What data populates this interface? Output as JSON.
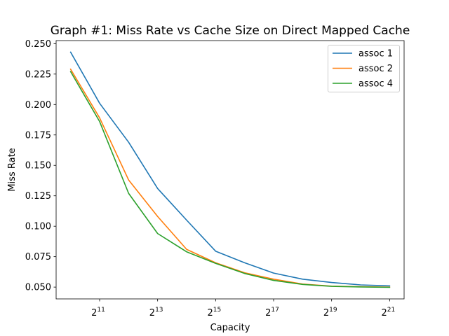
{
  "chart_data": {
    "type": "line",
    "title": "Graph #1: Miss Rate vs Cache Size on Direct Mapped Cache",
    "xlabel": "Capacity",
    "ylabel": "Miss Rate",
    "x_scale": "log2",
    "x": [
      1024,
      2048,
      4096,
      8192,
      16384,
      32768,
      65536,
      131072,
      262144,
      524288,
      1048576,
      2097152
    ],
    "xlim": [
      724,
      2965000
    ],
    "ylim": [
      0.0403,
      0.2525
    ],
    "x_ticks": [
      {
        "value": 2048,
        "base": "2",
        "exp": "11"
      },
      {
        "value": 8192,
        "base": "2",
        "exp": "13"
      },
      {
        "value": 32768,
        "base": "2",
        "exp": "15"
      },
      {
        "value": 131072,
        "base": "2",
        "exp": "17"
      },
      {
        "value": 524288,
        "base": "2",
        "exp": "19"
      },
      {
        "value": 2097152,
        "base": "2",
        "exp": "21"
      }
    ],
    "y_ticks": [
      {
        "value": 0.05,
        "label": "0.050"
      },
      {
        "value": 0.075,
        "label": "0.075"
      },
      {
        "value": 0.1,
        "label": "0.100"
      },
      {
        "value": 0.125,
        "label": "0.125"
      },
      {
        "value": 0.15,
        "label": "0.150"
      },
      {
        "value": 0.175,
        "label": "0.175"
      },
      {
        "value": 0.2,
        "label": "0.200"
      },
      {
        "value": 0.225,
        "label": "0.225"
      },
      {
        "value": 0.25,
        "label": "0.250"
      }
    ],
    "grid": false,
    "legend_position": "top-right",
    "series": [
      {
        "name": "assoc 1",
        "color": "#1f77b4",
        "values": [
          0.243,
          0.201,
          0.169,
          0.131,
          0.105,
          0.0795,
          0.07,
          0.0615,
          0.0565,
          0.0538,
          0.0518,
          0.051
        ]
      },
      {
        "name": "assoc 2",
        "color": "#ff7f0e",
        "values": [
          0.229,
          0.189,
          0.138,
          0.108,
          0.081,
          0.07,
          0.0618,
          0.0565,
          0.0525,
          0.0508,
          0.0503,
          0.05
        ]
      },
      {
        "name": "assoc 4",
        "color": "#2ca02c",
        "values": [
          0.227,
          0.186,
          0.127,
          0.094,
          0.079,
          0.0695,
          0.0612,
          0.0555,
          0.0522,
          0.0506,
          0.0501,
          0.0498
        ]
      }
    ]
  }
}
